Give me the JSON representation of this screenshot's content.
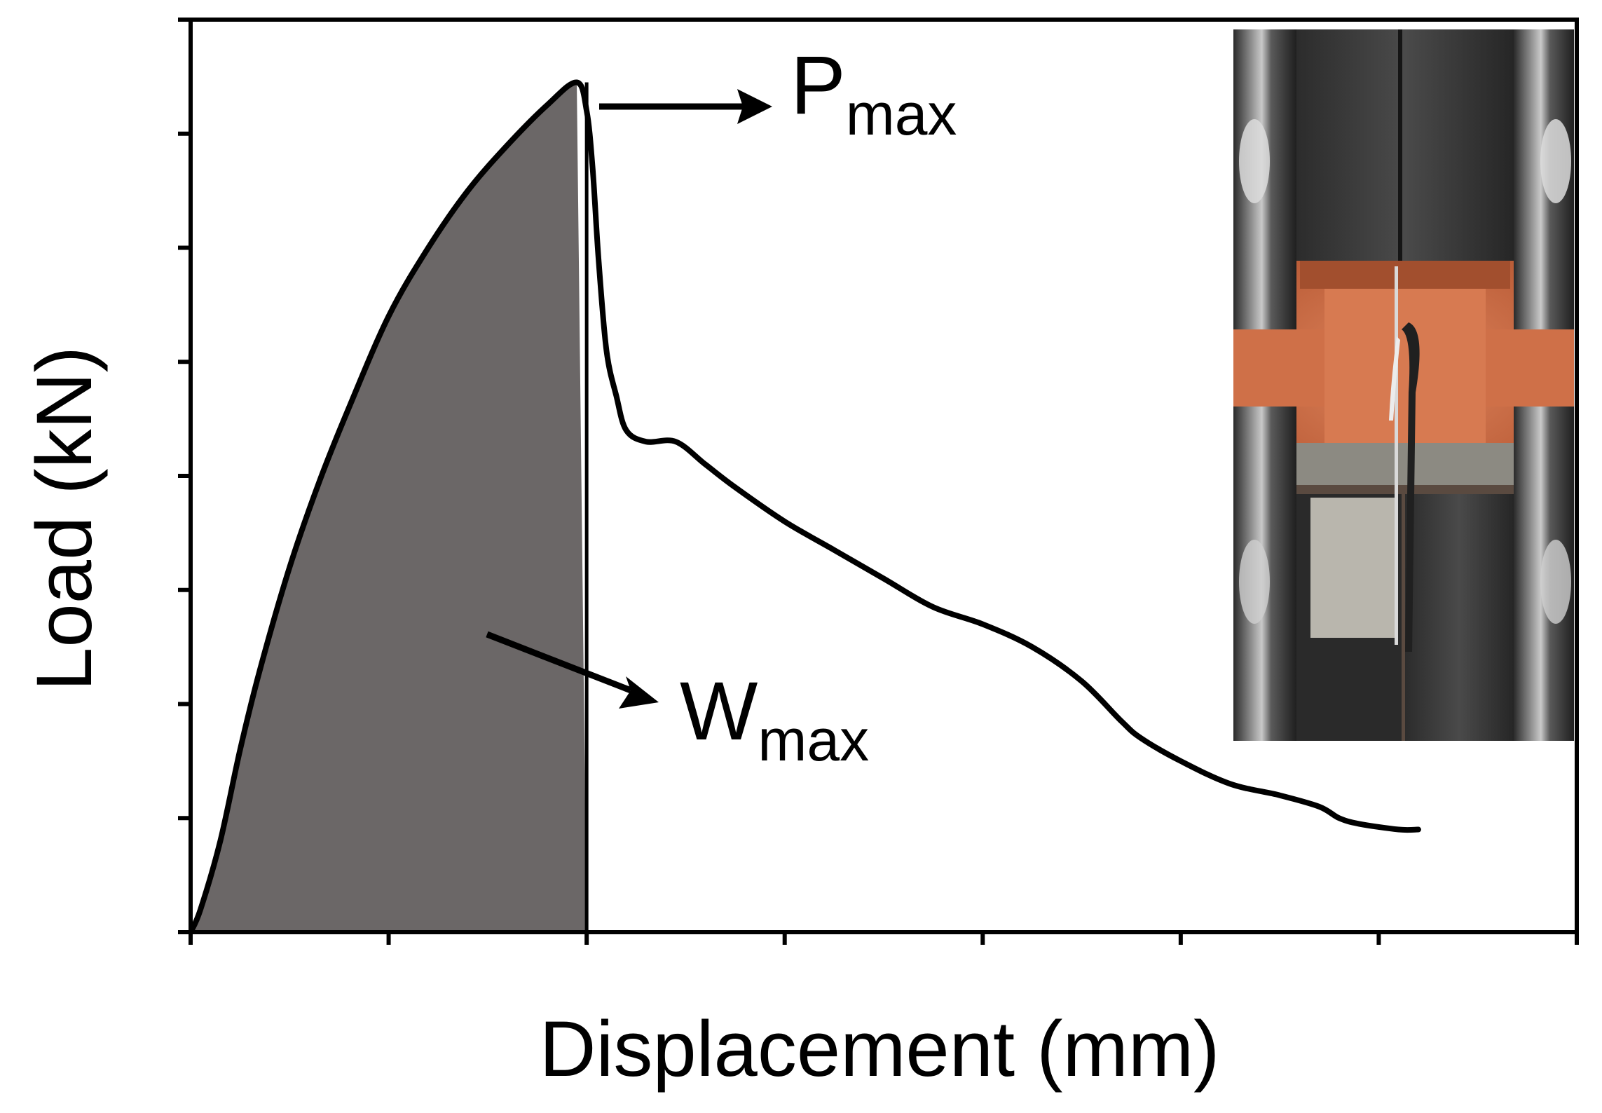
{
  "chart_data": {
    "type": "line",
    "title": "",
    "xlabel": "Displacement (mm)",
    "ylabel": "Load (kN)",
    "x_tick_labels": [],
    "y_tick_labels": [],
    "xlim": [
      0,
      7
    ],
    "ylim": [
      0,
      8
    ],
    "x_tick_count": 8,
    "y_tick_count": 9,
    "grid": false,
    "series": [
      {
        "x": [
          0.0,
          0.05,
          0.15,
          0.25,
          0.35,
          0.5,
          0.65,
          0.8,
          1.0,
          1.2,
          1.4,
          1.6,
          1.8,
          1.95,
          2.0,
          2.03,
          2.06,
          2.1,
          2.15,
          2.2,
          2.3,
          2.45,
          2.6,
          2.75,
          3.0,
          3.25,
          3.5,
          3.75,
          4.0,
          4.25,
          4.5,
          4.7,
          4.8,
          5.0,
          5.25,
          5.5,
          5.7,
          5.8,
          5.9,
          6.1,
          6.2
        ],
        "y": [
          0.0,
          0.2,
          0.8,
          1.6,
          2.3,
          3.2,
          3.95,
          4.6,
          5.4,
          6.0,
          6.5,
          6.9,
          7.25,
          7.45,
          7.2,
          6.7,
          5.9,
          5.1,
          4.7,
          4.4,
          4.3,
          4.3,
          4.1,
          3.9,
          3.6,
          3.35,
          3.1,
          2.85,
          2.7,
          2.5,
          2.2,
          1.85,
          1.7,
          1.5,
          1.3,
          1.2,
          1.1,
          1.0,
          0.95,
          0.9,
          0.9
        ]
      }
    ],
    "shaded_region": {
      "x_from": 0.0,
      "x_to": 2.0,
      "color": "#6b6767"
    },
    "annotations": [
      {
        "label": "P",
        "subscript": "max",
        "points_to": [
          2.0,
          7.45
        ]
      },
      {
        "label": "W",
        "subscript": "max",
        "points_to": [
          1.5,
          4.0
        ]
      }
    ],
    "inset_photo": "tensile test specimen in grips"
  },
  "colors": {
    "line": "#000000",
    "shaded_area": "#6b6767",
    "photo_orange": "#d2734b",
    "photo_steel": "#3c3c3c"
  }
}
